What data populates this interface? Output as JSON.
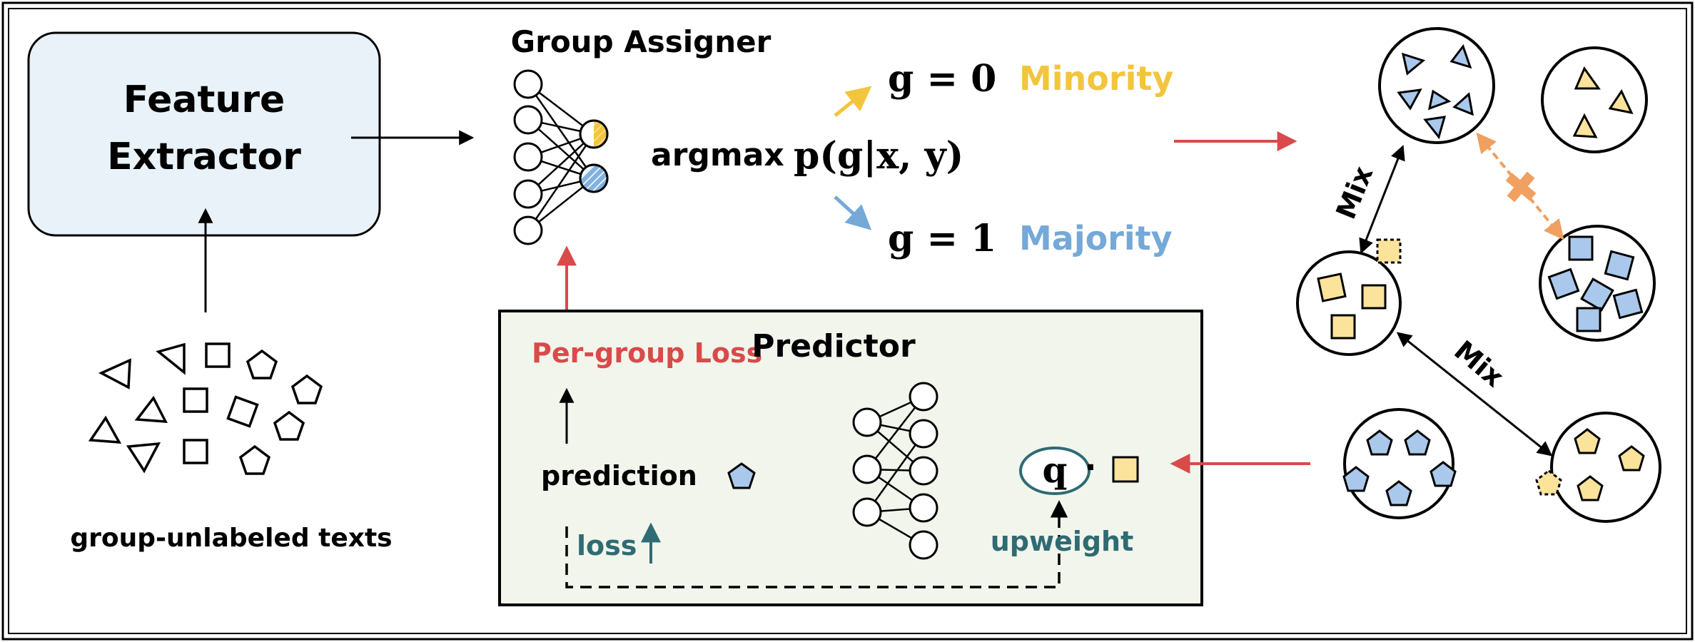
{
  "feature_extractor": {
    "label_line1": "Feature",
    "label_line2": "Extractor"
  },
  "input_texts": {
    "label": "group-unlabeled texts"
  },
  "group_assigner": {
    "title": "Group Assigner",
    "argmax_word": "argmax",
    "argmax_expr": "p(g|x, y)",
    "minority": {
      "expr": "g = 0",
      "label": "Minority"
    },
    "majority": {
      "expr": "g = 1",
      "label": "Majority"
    }
  },
  "predictor_box": {
    "title": "Predictor",
    "per_group_loss": "Per-group Loss",
    "prediction": "prediction",
    "loss": "loss",
    "upweight": "upweight",
    "q_symbol": "q",
    "dot": "·"
  },
  "mix_panel": {
    "mix_label_1": "Mix",
    "mix_label_2": "Mix"
  },
  "colors": {
    "minority_yellow": "#f2c53d",
    "majority_blue": "#74a9d8",
    "shape_fill_yellow": "#fbe39b",
    "shape_fill_blue": "#a9c8ec",
    "red_arrow": "#d94a4a",
    "teal": "#2f6b73",
    "orange": "#f0a060",
    "extractor_fill": "#e8f2f8",
    "predictor_fill": "#f1f5ec"
  }
}
